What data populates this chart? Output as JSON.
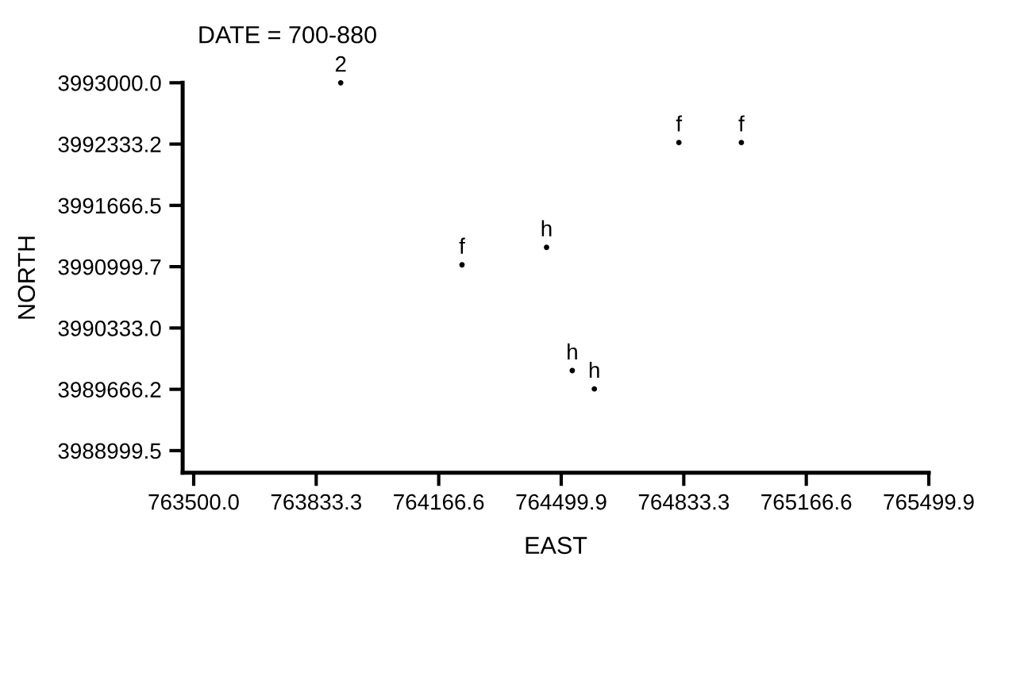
{
  "chart_data": {
    "type": "scatter",
    "title": "DATE = 700-880",
    "xlabel": "EAST",
    "ylabel": "NORTH",
    "series": [
      {
        "name": "2",
        "color": "#000000",
        "x": [
          763900
        ],
        "values": [
          3993000
        ]
      },
      {
        "name": "f",
        "color": "#000000",
        "x": [
          764230,
          764820,
          764990
        ],
        "values": [
          3991020,
          3992350,
          3992350
        ]
      },
      {
        "name": "h",
        "color": "#000000",
        "x": [
          764460,
          764530,
          764590
        ],
        "values": [
          3991210,
          3989870,
          3989670
        ]
      }
    ],
    "xlim": [
      763470,
      765499.9
    ],
    "ylim": [
      3988760,
      3993000
    ],
    "xticks": [
      {
        "value": 763500.0,
        "label": "763500.0"
      },
      {
        "value": 763833.3,
        "label": "763833.3"
      },
      {
        "value": 764166.6,
        "label": "764166.6"
      },
      {
        "value": 764499.9,
        "label": "764499.9"
      },
      {
        "value": 764833.3,
        "label": "764833.3"
      },
      {
        "value": 765166.6,
        "label": "765166.6"
      },
      {
        "value": 765499.9,
        "label": "765499.9"
      }
    ],
    "yticks": [
      {
        "value": 3993000.0,
        "label": "3993000.0"
      },
      {
        "value": 3992333.2,
        "label": "3992333.2"
      },
      {
        "value": 3991666.5,
        "label": "3991666.5"
      },
      {
        "value": 3990999.7,
        "label": "3990999.7"
      },
      {
        "value": 3990333.0,
        "label": "3990333.0"
      },
      {
        "value": 3989666.2,
        "label": "3989666.2"
      },
      {
        "value": 3988999.5,
        "label": "3988999.5"
      }
    ],
    "grid": false,
    "marker": "circle"
  }
}
